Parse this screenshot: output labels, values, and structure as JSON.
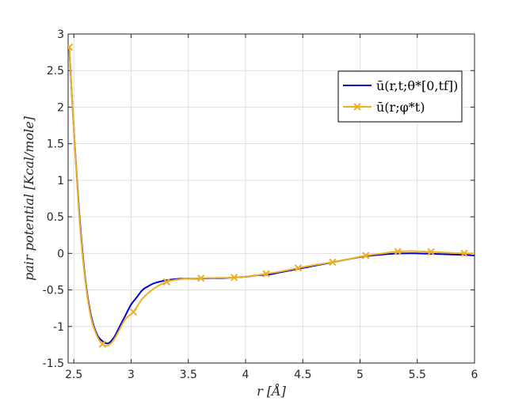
{
  "chart_data": {
    "type": "line",
    "title": "",
    "xlabel": "r [Å]",
    "ylabel": "pair potential [Kcal/mole]",
    "xlim": [
      2.45,
      6
    ],
    "ylim": [
      -1.5,
      3
    ],
    "xticks": [
      2.5,
      3,
      3.5,
      4,
      4.5,
      5,
      5.5,
      6
    ],
    "xtick_labels": [
      "2.5",
      "3",
      "3.5",
      "4",
      "4.5",
      "5",
      "5.5",
      "6"
    ],
    "yticks": [
      -1.5,
      -1,
      -0.5,
      0,
      0.5,
      1,
      1.5,
      2,
      2.5,
      3
    ],
    "ytick_labels": [
      "-1.5",
      "-1",
      "-0.5",
      "0",
      "0.5",
      "1",
      "1.5",
      "2",
      "2.5",
      "3"
    ],
    "grid": true,
    "legend_position": "top-right",
    "series": [
      {
        "name": "ū(r,t;θ*[0,tf])",
        "color": "#0000d5",
        "marker": "none",
        "x": [
          2.46,
          2.5,
          2.55,
          2.6,
          2.65,
          2.7,
          2.75,
          2.8,
          2.85,
          2.9,
          2.95,
          3.0,
          3.05,
          3.1,
          3.15,
          3.2,
          3.3,
          3.4,
          3.5,
          3.6,
          3.7,
          3.8,
          3.9,
          4.0,
          4.1,
          4.2,
          4.3,
          4.4,
          4.5,
          4.6,
          4.7,
          4.8,
          4.9,
          5.0,
          5.1,
          5.2,
          5.3,
          5.4,
          5.5,
          5.6,
          5.7,
          5.8,
          5.9,
          6.0
        ],
        "y": [
          2.8,
          1.7,
          0.5,
          -0.35,
          -0.85,
          -1.1,
          -1.2,
          -1.23,
          -1.15,
          -1.0,
          -0.85,
          -0.7,
          -0.6,
          -0.5,
          -0.45,
          -0.41,
          -0.37,
          -0.35,
          -0.345,
          -0.345,
          -0.34,
          -0.34,
          -0.33,
          -0.32,
          -0.3,
          -0.29,
          -0.26,
          -0.23,
          -0.2,
          -0.17,
          -0.14,
          -0.11,
          -0.08,
          -0.05,
          -0.03,
          -0.015,
          -0.005,
          0.0,
          0.0,
          -0.005,
          -0.01,
          -0.015,
          -0.02,
          -0.03
        ]
      },
      {
        "name": "ū(r;φ*t)",
        "color": "#edb120",
        "marker": "x",
        "x": [
          2.46,
          2.5,
          2.55,
          2.6,
          2.65,
          2.7,
          2.75,
          2.8,
          2.85,
          2.9,
          2.95,
          3.02,
          3.1,
          3.2,
          3.31,
          3.4,
          3.5,
          3.61,
          3.75,
          3.9,
          4.05,
          4.18,
          4.3,
          4.46,
          4.6,
          4.76,
          4.9,
          5.05,
          5.2,
          5.33,
          5.45,
          5.62,
          5.75,
          5.91,
          6.0
        ],
        "y": [
          2.82,
          1.7,
          0.45,
          -0.38,
          -0.88,
          -1.12,
          -1.24,
          -1.26,
          -1.18,
          -1.04,
          -0.9,
          -0.8,
          -0.62,
          -0.48,
          -0.39,
          -0.36,
          -0.345,
          -0.34,
          -0.335,
          -0.33,
          -0.31,
          -0.28,
          -0.25,
          -0.2,
          -0.16,
          -0.12,
          -0.08,
          -0.03,
          0.0,
          0.025,
          0.03,
          0.02,
          0.01,
          0.0,
          0.0
        ],
        "marker_x": [
          2.46,
          2.75,
          3.02,
          3.31,
          3.61,
          3.9,
          4.18,
          4.46,
          4.76,
          5.05,
          5.33,
          5.62,
          5.91
        ],
        "marker_y": [
          2.82,
          -1.24,
          -0.8,
          -0.39,
          -0.34,
          -0.33,
          -0.28,
          -0.2,
          -0.12,
          -0.03,
          0.025,
          0.02,
          0.0
        ]
      }
    ]
  }
}
